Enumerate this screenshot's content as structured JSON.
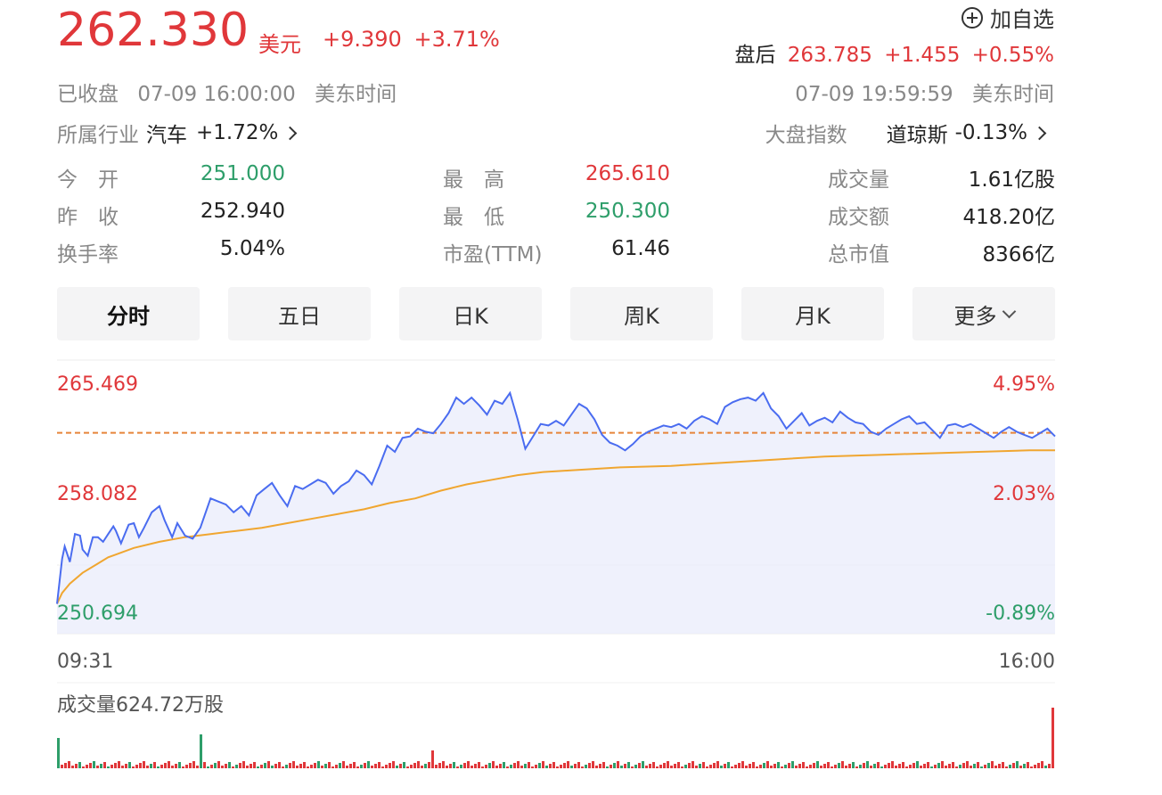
{
  "quote": {
    "price": "262.330",
    "unit": "美元",
    "change": "+9.390",
    "change_pct": "+3.71%",
    "status": "已收盘",
    "date_time": "07-09 16:00:00",
    "timezone": "美东时间"
  },
  "watchlist": {
    "label": "加自选",
    "icon": "plus-circle-icon"
  },
  "after_hours": {
    "label": "盘后",
    "price": "263.785",
    "change": "+1.455",
    "change_pct": "+0.55%",
    "date_time": "07-09 19:59:59",
    "timezone": "美东时间"
  },
  "industry": {
    "label": "所属行业",
    "name": "汽车",
    "change_pct": "+1.72%"
  },
  "market_index": {
    "label": "大盘指数",
    "name": "道琼斯",
    "change_pct": "-0.13%"
  },
  "stats": {
    "open": {
      "label": "今　开",
      "value": "251.000"
    },
    "prev_close": {
      "label": "昨　收",
      "value": "252.940"
    },
    "turnover_rate": {
      "label": "换手率",
      "value": "5.04%"
    },
    "high": {
      "label": "最　高",
      "value": "265.610"
    },
    "low": {
      "label": "最　低",
      "value": "250.300"
    },
    "pe_ttm": {
      "label": "市盈(TTM)",
      "value": "61.46"
    },
    "volume": {
      "label": "成交量",
      "value": "1.61亿股"
    },
    "amount": {
      "label": "成交额",
      "value": "418.20亿"
    },
    "market_cap": {
      "label": "总市值",
      "value": "8366亿"
    }
  },
  "tabs": [
    {
      "label": "分时",
      "active": true
    },
    {
      "label": "五日"
    },
    {
      "label": "日K"
    },
    {
      "label": "周K"
    },
    {
      "label": "月K"
    },
    {
      "label": "更多",
      "dropdown": true
    }
  ],
  "chart_data": {
    "type": "line",
    "y_left_ticks": [
      "265.469",
      "258.082",
      "250.694"
    ],
    "y_right_ticks": [
      "4.95%",
      "2.03%",
      "-0.89%"
    ],
    "ylim": [
      250.694,
      265.469
    ],
    "reference_price": 262.33,
    "x_start_label": "09:31",
    "x_end_label": "16:00",
    "price_series": [
      [
        0,
        251.3
      ],
      [
        2,
        254.2
      ],
      [
        3,
        255.0
      ],
      [
        5,
        254.0
      ],
      [
        7,
        255.8
      ],
      [
        9,
        255.7
      ],
      [
        10,
        254.8
      ],
      [
        12,
        254.4
      ],
      [
        14,
        255.6
      ],
      [
        16,
        255.6
      ],
      [
        18,
        255.3
      ],
      [
        20,
        255.8
      ],
      [
        22,
        256.3
      ],
      [
        23,
        256.0
      ],
      [
        25,
        255.2
      ],
      [
        28,
        256.4
      ],
      [
        30,
        256.5
      ],
      [
        32,
        255.6
      ],
      [
        34,
        256.2
      ],
      [
        37,
        257.2
      ],
      [
        40,
        257.6
      ],
      [
        42,
        256.7
      ],
      [
        45,
        255.6
      ],
      [
        47,
        256.5
      ],
      [
        50,
        255.7
      ],
      [
        53,
        255.5
      ],
      [
        56,
        256.2
      ],
      [
        60,
        258.1
      ],
      [
        63,
        257.9
      ],
      [
        66,
        257.7
      ],
      [
        69,
        257.2
      ],
      [
        72,
        257.6
      ],
      [
        75,
        257.0
      ],
      [
        78,
        258.3
      ],
      [
        81,
        258.7
      ],
      [
        84,
        259.1
      ],
      [
        87,
        258.3
      ],
      [
        90,
        257.6
      ],
      [
        93,
        258.9
      ],
      [
        96,
        258.7
      ],
      [
        99,
        259.0
      ],
      [
        102,
        259.3
      ],
      [
        105,
        259.1
      ],
      [
        108,
        258.4
      ],
      [
        111,
        258.9
      ],
      [
        114,
        259.2
      ],
      [
        117,
        259.9
      ],
      [
        120,
        259.6
      ],
      [
        123,
        259.0
      ],
      [
        126,
        260.2
      ],
      [
        129,
        261.5
      ],
      [
        132,
        261.1
      ],
      [
        135,
        262.0
      ],
      [
        138,
        262.1
      ],
      [
        141,
        262.6
      ],
      [
        144,
        262.4
      ],
      [
        147,
        262.3
      ],
      [
        150,
        262.9
      ],
      [
        153,
        263.6
      ],
      [
        156,
        264.6
      ],
      [
        159,
        264.2
      ],
      [
        162,
        264.6
      ],
      [
        165,
        264.1
      ],
      [
        168,
        263.5
      ],
      [
        171,
        264.4
      ],
      [
        174,
        264.2
      ],
      [
        177,
        264.9
      ],
      [
        180,
        263.2
      ],
      [
        183,
        261.3
      ],
      [
        186,
        262.1
      ],
      [
        189,
        262.9
      ],
      [
        192,
        262.8
      ],
      [
        195,
        263.1
      ],
      [
        198,
        262.8
      ],
      [
        201,
        263.5
      ],
      [
        204,
        264.2
      ],
      [
        207,
        263.9
      ],
      [
        210,
        263.2
      ],
      [
        213,
        262.2
      ],
      [
        216,
        261.7
      ],
      [
        219,
        261.5
      ],
      [
        222,
        261.2
      ],
      [
        225,
        261.6
      ],
      [
        228,
        262.1
      ],
      [
        231,
        262.4
      ],
      [
        234,
        262.6
      ],
      [
        237,
        262.8
      ],
      [
        240,
        262.7
      ],
      [
        243,
        262.9
      ],
      [
        246,
        262.6
      ],
      [
        249,
        263.1
      ],
      [
        252,
        263.4
      ],
      [
        255,
        263.2
      ],
      [
        258,
        262.9
      ],
      [
        261,
        264.0
      ],
      [
        264,
        264.3
      ],
      [
        267,
        264.5
      ],
      [
        270,
        264.6
      ],
      [
        273,
        264.4
      ],
      [
        276,
        264.9
      ],
      [
        279,
        263.9
      ],
      [
        282,
        263.4
      ],
      [
        285,
        262.6
      ],
      [
        288,
        263.1
      ],
      [
        291,
        263.6
      ],
      [
        294,
        262.8
      ],
      [
        297,
        263.1
      ],
      [
        300,
        263.3
      ],
      [
        303,
        263.0
      ],
      [
        306,
        263.7
      ],
      [
        309,
        263.3
      ],
      [
        312,
        263.0
      ],
      [
        315,
        262.9
      ],
      [
        318,
        262.4
      ],
      [
        321,
        262.2
      ],
      [
        324,
        262.6
      ],
      [
        327,
        262.9
      ],
      [
        330,
        263.2
      ],
      [
        333,
        263.4
      ],
      [
        336,
        262.9
      ],
      [
        339,
        263.0
      ],
      [
        342,
        262.5
      ],
      [
        345,
        262.0
      ],
      [
        348,
        262.8
      ],
      [
        351,
        262.9
      ],
      [
        354,
        262.7
      ],
      [
        357,
        262.9
      ],
      [
        360,
        262.6
      ],
      [
        363,
        262.3
      ],
      [
        366,
        262.0
      ],
      [
        369,
        262.4
      ],
      [
        372,
        262.7
      ],
      [
        375,
        262.4
      ],
      [
        378,
        262.2
      ],
      [
        381,
        262.0
      ],
      [
        384,
        262.3
      ],
      [
        387,
        262.6
      ],
      [
        390,
        262.1
      ]
    ],
    "avg_series": [
      [
        0,
        251.3
      ],
      [
        2,
        252.0
      ],
      [
        5,
        252.6
      ],
      [
        10,
        253.3
      ],
      [
        15,
        253.8
      ],
      [
        20,
        254.3
      ],
      [
        30,
        254.9
      ],
      [
        40,
        255.3
      ],
      [
        50,
        255.6
      ],
      [
        60,
        255.8
      ],
      [
        70,
        256.0
      ],
      [
        80,
        256.2
      ],
      [
        90,
        256.5
      ],
      [
        100,
        256.8
      ],
      [
        110,
        257.1
      ],
      [
        120,
        257.4
      ],
      [
        130,
        257.8
      ],
      [
        140,
        258.1
      ],
      [
        150,
        258.6
      ],
      [
        160,
        259.0
      ],
      [
        170,
        259.3
      ],
      [
        180,
        259.6
      ],
      [
        190,
        259.8
      ],
      [
        200,
        259.9
      ],
      [
        210,
        260.0
      ],
      [
        220,
        260.1
      ],
      [
        240,
        260.2
      ],
      [
        260,
        260.4
      ],
      [
        280,
        260.6
      ],
      [
        300,
        260.8
      ],
      [
        320,
        260.9
      ],
      [
        340,
        261.0
      ],
      [
        360,
        261.1
      ],
      [
        380,
        261.2
      ],
      [
        390,
        261.2
      ]
    ]
  },
  "volume": {
    "label": "成交量624.72万股",
    "colors": {
      "up": "#e0373a",
      "down": "#2e9e6a"
    }
  },
  "colors": {
    "up": "#e0373a",
    "down": "#2e9e6a",
    "price_line": "#4a6cf0",
    "avg_line": "#f0a630",
    "area_fill": "#e9ecfb"
  }
}
